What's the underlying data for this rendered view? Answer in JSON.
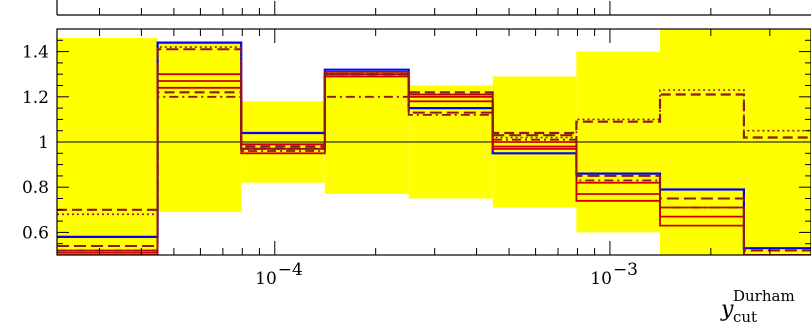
{
  "chart_data": {
    "type": "line",
    "style": "step histogram ratio panel with yellow uncertainty band",
    "xlabel_main": "y",
    "xlabel_sub": "cut",
    "xlabel_sup": "Durham",
    "x_scale": "log",
    "xlim": [
      2.24e-05,
      0.00398
    ],
    "ylim": [
      0.5,
      1.5
    ],
    "y_ticks": [
      0.6,
      0.8,
      1,
      1.2,
      1.4
    ],
    "y_tick_labels": [
      "0.6",
      "0.8",
      "1",
      "1.2",
      "1.4"
    ],
    "x_major_ticks": [
      0.0001,
      0.001
    ],
    "x_tick_labels": [
      "10",
      "10"
    ],
    "x_tick_exponents": [
      "−4",
      "−3"
    ],
    "reference_line": 1,
    "bin_edges": [
      2.24e-05,
      4.47e-05,
      7.94e-05,
      0.000141,
      0.000251,
      0.000447,
      0.000794,
      0.00141,
      0.00251,
      0.00398
    ],
    "band": {
      "color": "#ffff00",
      "lower": [
        0.5,
        0.69,
        0.82,
        0.77,
        0.75,
        0.71,
        0.6,
        0.5,
        0.5
      ],
      "upper": [
        1.46,
        1.44,
        1.18,
        1.31,
        1.25,
        1.29,
        1.4,
        1.5,
        1.5
      ]
    },
    "series": [
      {
        "color": "#0000ff",
        "dash": "",
        "width": 2.2,
        "values": [
          0.58,
          1.44,
          1.04,
          1.32,
          1.15,
          0.95,
          0.86,
          0.79,
          0.53
        ]
      },
      {
        "color": "#cc0000",
        "dash": "",
        "width": 1.8,
        "values": [
          0.52,
          1.3,
          0.99,
          1.31,
          1.21,
          1.0,
          0.82,
          0.71,
          0.5
        ]
      },
      {
        "color": "#cc0000",
        "dash": "",
        "width": 1.8,
        "values": [
          0.51,
          1.27,
          0.97,
          1.3,
          1.2,
          0.98,
          0.77,
          0.67,
          0.49
        ]
      },
      {
        "color": "#cc0000",
        "dash": "",
        "width": 1.8,
        "values": [
          0.5,
          1.24,
          0.95,
          1.29,
          1.18,
          0.97,
          0.74,
          0.63,
          0.48
        ]
      },
      {
        "color": "#8b1a1a",
        "dash": "10,5",
        "width": 2.2,
        "values": [
          0.7,
          1.22,
          0.98,
          1.3,
          1.22,
          1.04,
          1.09,
          1.21,
          1.02
        ]
      },
      {
        "color": "#8b1a1a",
        "dash": "2,3",
        "width": 1.6,
        "values": [
          0.68,
          1.42,
          0.97,
          1.31,
          1.21,
          1.02,
          1.1,
          1.23,
          1.05
        ]
      },
      {
        "color": "#8b1a1a",
        "dash": "9,4,2,4",
        "width": 1.8,
        "values": [
          0.52,
          1.2,
          0.96,
          1.2,
          1.12,
          1.01,
          0.83,
          0.71,
          0.5
        ]
      },
      {
        "color": "#8b1a1a",
        "dash": "12,5",
        "width": 2.0,
        "values": [
          0.54,
          1.41,
          0.97,
          1.3,
          1.13,
          1.03,
          0.85,
          0.75,
          0.52
        ]
      }
    ]
  }
}
